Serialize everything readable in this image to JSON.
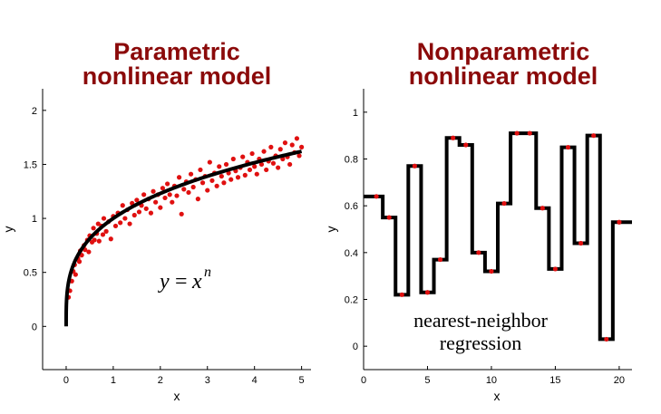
{
  "charts": [
    {
      "title_line1": "Parametric",
      "title_line2": "nonlinear model",
      "xlabel": "x",
      "ylabel": "y",
      "annotation_lhs": "y",
      "annotation_eq": "=",
      "annotation_base": "x",
      "annotation_exp": "n"
    },
    {
      "title_line1": "Nonparametric",
      "title_line2": "nonlinear model",
      "xlabel": "x",
      "ylabel": "y",
      "annotation_line1": "nearest-neighbor",
      "annotation_line2": "regression"
    }
  ],
  "chart_data": [
    {
      "type": "scatter",
      "xlim": [
        -0.5,
        5.2
      ],
      "ylim": [
        -0.4,
        2.2
      ],
      "xticks": [
        "0",
        "1",
        "2",
        "3",
        "4",
        "5"
      ],
      "yticks": [
        "0",
        "0.5",
        "1",
        "1.5",
        "2"
      ],
      "xtick_values": [
        0,
        1,
        2,
        3,
        4,
        5
      ],
      "ytick_values": [
        0,
        0.5,
        1,
        1.5,
        2
      ],
      "curve": {
        "type": "power",
        "exponent": 0.3,
        "x_range": [
          0,
          5
        ]
      },
      "points_color": "#e01010",
      "points": [
        [
          0.05,
          0.27
        ],
        [
          0.08,
          0.33
        ],
        [
          0.12,
          0.42
        ],
        [
          0.15,
          0.51
        ],
        [
          0.18,
          0.57
        ],
        [
          0.2,
          0.48
        ],
        [
          0.25,
          0.63
        ],
        [
          0.28,
          0.6
        ],
        [
          0.3,
          0.7
        ],
        [
          0.33,
          0.66
        ],
        [
          0.38,
          0.75
        ],
        [
          0.4,
          0.71
        ],
        [
          0.45,
          0.8
        ],
        [
          0.48,
          0.69
        ],
        [
          0.5,
          0.84
        ],
        [
          0.55,
          0.78
        ],
        [
          0.58,
          0.91
        ],
        [
          0.6,
          0.8
        ],
        [
          0.65,
          0.86
        ],
        [
          0.68,
          0.95
        ],
        [
          0.7,
          0.79
        ],
        [
          0.75,
          0.93
        ],
        [
          0.78,
          0.85
        ],
        [
          0.8,
          1.0
        ],
        [
          0.85,
          0.88
        ],
        [
          0.9,
          0.97
        ],
        [
          0.95,
          0.81
        ],
        [
          1.0,
          1.02
        ],
        [
          1.05,
          0.93
        ],
        [
          1.1,
          1.05
        ],
        [
          1.15,
          0.96
        ],
        [
          1.2,
          1.12
        ],
        [
          1.25,
          1.0
        ],
        [
          1.3,
          1.08
        ],
        [
          1.35,
          0.95
        ],
        [
          1.4,
          1.14
        ],
        [
          1.45,
          1.03
        ],
        [
          1.5,
          1.17
        ],
        [
          1.55,
          1.06
        ],
        [
          1.6,
          1.12
        ],
        [
          1.65,
          1.22
        ],
        [
          1.7,
          1.09
        ],
        [
          1.75,
          1.18
        ],
        [
          1.8,
          1.05
        ],
        [
          1.85,
          1.25
        ],
        [
          1.9,
          1.15
        ],
        [
          1.95,
          1.22
        ],
        [
          2.0,
          1.1
        ],
        [
          2.05,
          1.28
        ],
        [
          2.1,
          1.19
        ],
        [
          2.15,
          1.32
        ],
        [
          2.2,
          1.22
        ],
        [
          2.25,
          1.15
        ],
        [
          2.3,
          1.3
        ],
        [
          2.35,
          1.21
        ],
        [
          2.4,
          1.38
        ],
        [
          2.45,
          1.04
        ],
        [
          2.5,
          1.27
        ],
        [
          2.55,
          1.34
        ],
        [
          2.6,
          1.24
        ],
        [
          2.65,
          1.41
        ],
        [
          2.7,
          1.29
        ],
        [
          2.75,
          1.36
        ],
        [
          2.8,
          1.18
        ],
        [
          2.85,
          1.45
        ],
        [
          2.9,
          1.33
        ],
        [
          2.95,
          1.39
        ],
        [
          3.0,
          1.26
        ],
        [
          3.05,
          1.52
        ],
        [
          3.1,
          1.35
        ],
        [
          3.15,
          1.42
        ],
        [
          3.2,
          1.3
        ],
        [
          3.25,
          1.48
        ],
        [
          3.3,
          1.39
        ],
        [
          3.35,
          1.33
        ],
        [
          3.4,
          1.5
        ],
        [
          3.45,
          1.42
        ],
        [
          3.5,
          1.36
        ],
        [
          3.55,
          1.55
        ],
        [
          3.6,
          1.44
        ],
        [
          3.65,
          1.38
        ],
        [
          3.7,
          1.47
        ],
        [
          3.75,
          1.57
        ],
        [
          3.8,
          1.4
        ],
        [
          3.85,
          1.52
        ],
        [
          3.9,
          1.45
        ],
        [
          3.95,
          1.6
        ],
        [
          4.0,
          1.48
        ],
        [
          4.05,
          1.41
        ],
        [
          4.1,
          1.55
        ],
        [
          4.15,
          1.5
        ],
        [
          4.2,
          1.62
        ],
        [
          4.25,
          1.45
        ],
        [
          4.3,
          1.53
        ],
        [
          4.35,
          1.66
        ],
        [
          4.4,
          1.51
        ],
        [
          4.45,
          1.58
        ],
        [
          4.5,
          1.47
        ],
        [
          4.55,
          1.64
        ],
        [
          4.6,
          1.55
        ],
        [
          4.65,
          1.7
        ],
        [
          4.7,
          1.57
        ],
        [
          4.75,
          1.5
        ],
        [
          4.8,
          1.68
        ],
        [
          4.85,
          1.61
        ],
        [
          4.9,
          1.74
        ],
        [
          4.95,
          1.58
        ],
        [
          5.0,
          1.66
        ]
      ]
    },
    {
      "type": "line",
      "xlim": [
        0,
        21
      ],
      "ylim": [
        -0.1,
        1.1
      ],
      "xticks": [
        "0",
        "5",
        "10",
        "15",
        "20"
      ],
      "yticks": [
        "0",
        "0.2",
        "0.4",
        "0.6",
        "0.8",
        "1"
      ],
      "xtick_values": [
        0,
        5,
        10,
        15,
        20
      ],
      "ytick_values": [
        0,
        0.2,
        0.4,
        0.6,
        0.8,
        1
      ],
      "step_color": "#000000",
      "points_color": "#e01010",
      "points": [
        [
          1,
          0.64
        ],
        [
          2,
          0.55
        ],
        [
          3,
          0.22
        ],
        [
          4,
          0.77
        ],
        [
          5,
          0.23
        ],
        [
          6,
          0.37
        ],
        [
          7,
          0.89
        ],
        [
          8,
          0.86
        ],
        [
          9,
          0.4
        ],
        [
          10,
          0.32
        ],
        [
          11,
          0.61
        ],
        [
          12,
          0.91
        ],
        [
          13,
          0.91
        ],
        [
          14,
          0.59
        ],
        [
          15,
          0.33
        ],
        [
          16,
          0.85
        ],
        [
          17,
          0.44
        ],
        [
          18,
          0.9
        ],
        [
          19,
          0.03
        ],
        [
          20,
          0.53
        ]
      ]
    }
  ]
}
